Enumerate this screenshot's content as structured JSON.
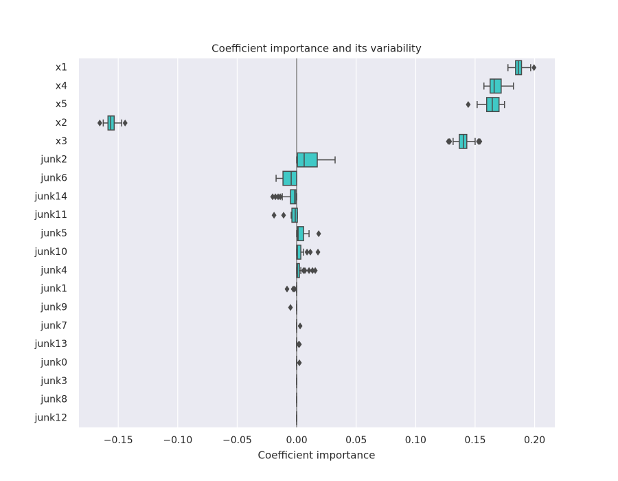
{
  "chart_data": {
    "type": "horizontal_box",
    "title": "Coefficient importance and its variability",
    "xlabel": "Coefficient importance",
    "categories": [
      "x1",
      "x4",
      "x5",
      "x2",
      "x3",
      "junk2",
      "junk6",
      "junk14",
      "junk11",
      "junk5",
      "junk10",
      "junk4",
      "junk1",
      "junk9",
      "junk7",
      "junk13",
      "junk0",
      "junk3",
      "junk8",
      "junk12"
    ],
    "boxes": [
      {
        "min": 0.1776,
        "q1": 0.184,
        "median": 0.1863,
        "q3": 0.189,
        "max": 0.1967,
        "outliers": [
          0.1995
        ]
      },
      {
        "min": 0.1574,
        "q1": 0.1626,
        "median": 0.166,
        "q3": 0.1719,
        "max": 0.1822,
        "outliers": []
      },
      {
        "min": 0.1517,
        "q1": 0.1597,
        "median": 0.1644,
        "q3": 0.1701,
        "max": 0.1747,
        "outliers": [
          0.1442
        ]
      },
      {
        "min": -0.1626,
        "q1": -0.1586,
        "median": -0.1563,
        "q3": -0.1534,
        "max": -0.1471,
        "outliers": [
          -0.1655,
          -0.1442
        ]
      },
      {
        "min": 0.1315,
        "q1": 0.1367,
        "median": 0.1401,
        "q3": 0.143,
        "max": 0.15,
        "outliers": [
          0.1275,
          0.1286,
          0.1528,
          0.154
        ]
      },
      {
        "min": 0,
        "q1": 0.0006,
        "median": 0.0063,
        "q3": 0.0173,
        "max": 0.0323,
        "outliers": []
      },
      {
        "min": -0.0173,
        "q1": -0.0115,
        "median": -0.0046,
        "q3": 0,
        "max": 0,
        "outliers": []
      },
      {
        "min": -0.0121,
        "q1": -0.0052,
        "median": -0.0017,
        "q3": -0.0006,
        "max": 0,
        "outliers": [
          -0.0202,
          -0.0179,
          -0.0156,
          -0.0138
        ]
      },
      {
        "min": -0.0046,
        "q1": -0.004,
        "median": -0.0012,
        "q3": 0.0006,
        "max": 0.0006,
        "outliers": [
          -0.019,
          -0.011
        ]
      },
      {
        "min": 0,
        "q1": 0.0006,
        "median": 0.0012,
        "q3": 0.0058,
        "max": 0.0104,
        "outliers": [
          0.0185
        ]
      },
      {
        "min": 0,
        "q1": 0,
        "median": 0.0006,
        "q3": 0.0035,
        "max": 0.0058,
        "outliers": [
          0.0087,
          0.0115,
          0.0179
        ]
      },
      {
        "min": 0,
        "q1": 0,
        "median": 0.0006,
        "q3": 0.0023,
        "max": 0.0035,
        "outliers": [
          0.0058,
          0.0069,
          0.0104,
          0.0133,
          0.0156
        ]
      },
      {
        "min": 0,
        "q1": 0,
        "median": 0,
        "q3": 0,
        "max": 0,
        "outliers": [
          -0.0081,
          -0.0029,
          -0.0017
        ]
      },
      {
        "min": 0,
        "q1": 0,
        "median": 0,
        "q3": 0,
        "max": 0,
        "outliers": [
          -0.0052
        ]
      },
      {
        "min": 0,
        "q1": 0,
        "median": 0,
        "q3": 0,
        "max": 0,
        "outliers": [
          0.0029
        ]
      },
      {
        "min": 0,
        "q1": 0,
        "median": 0,
        "q3": 0,
        "max": 0,
        "outliers": [
          0.0017,
          0.0023
        ]
      },
      {
        "min": 0,
        "q1": 0,
        "median": 0,
        "q3": 0,
        "max": 0,
        "outliers": [
          0.0023
        ]
      },
      {
        "min": 0,
        "q1": 0,
        "median": 0,
        "q3": 0,
        "max": 0,
        "outliers": []
      },
      {
        "min": 0,
        "q1": 0,
        "median": 0,
        "q3": 0,
        "max": 0,
        "outliers": []
      },
      {
        "min": 0,
        "q1": 0,
        "median": 0,
        "q3": 0,
        "max": 0,
        "outliers": []
      }
    ],
    "color": "#40c9c6",
    "line_color": "#4a4a4a",
    "xlim": [
      -0.183,
      0.217
    ],
    "xticks": [
      {
        "value": -0.15,
        "label": "−0.15"
      },
      {
        "value": -0.1,
        "label": "−0.10"
      },
      {
        "value": -0.05,
        "label": "−0.05"
      },
      {
        "value": 0,
        "label": "0.00"
      },
      {
        "value": 0.05,
        "label": "0.05"
      },
      {
        "value": 0.1,
        "label": "0.10"
      },
      {
        "value": 0.15,
        "label": "0.15"
      },
      {
        "value": 0.2,
        "label": "0.20"
      }
    ],
    "vline": 0,
    "grid": true
  }
}
